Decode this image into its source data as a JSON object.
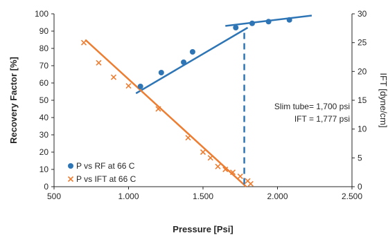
{
  "chart_data": {
    "type": "scatter",
    "xlabel": "Pressure [Psi]",
    "ylabel": "Recovery Factor [%]",
    "y2label": "IFT [dyne/cm]",
    "xlim": [
      500,
      2500
    ],
    "ylim": [
      0,
      100
    ],
    "y2lim": [
      0,
      30
    ],
    "x_ticks": [
      500,
      1000,
      1500,
      2000,
      2500
    ],
    "x_tick_labels": [
      "500",
      "1.000",
      "1.500",
      "2.000",
      "2.500"
    ],
    "y_ticks": [
      0,
      10,
      20,
      30,
      40,
      50,
      60,
      70,
      80,
      90,
      100
    ],
    "y2_ticks": [
      0,
      5,
      10,
      15,
      20,
      25,
      30
    ],
    "grid": false,
    "legend_position": "lower-left",
    "series": [
      {
        "name": "P vs RF at 66 C",
        "axis": "left",
        "color": "#2E75B6",
        "marker": "circle",
        "x": [
          1080,
          1220,
          1370,
          1430,
          1720,
          1830,
          1940,
          2080
        ],
        "y": [
          58,
          66,
          72,
          78,
          92,
          94.5,
          95.5,
          96.5
        ]
      },
      {
        "name": "P vs IFT at 66 C",
        "axis": "right",
        "color": "#ED7D31",
        "marker": "x",
        "x": [
          700,
          800,
          900,
          1000,
          1200,
          1400,
          1500,
          1550,
          1600,
          1650,
          1700,
          1750,
          1800,
          1820
        ],
        "y": [
          25,
          21.5,
          19,
          17.5,
          13.5,
          8.5,
          6,
          5,
          3.5,
          3,
          2.5,
          1.8,
          1,
          0.5
        ]
      }
    ],
    "trendlines": [
      {
        "axis": "left",
        "color": "#2E75B6",
        "x": [
          1050,
          1800
        ],
        "y": [
          54,
          92
        ]
      },
      {
        "axis": "left",
        "color": "#2E75B6",
        "x": [
          1650,
          2230
        ],
        "y": [
          93,
          99
        ]
      },
      {
        "axis": "right",
        "color": "#ED7D31",
        "x": [
          710,
          1790
        ],
        "y": [
          25.5,
          0
        ]
      }
    ],
    "vertical_marker": {
      "x": 1777,
      "color": "#2E75B6",
      "style": "dashed"
    },
    "annotations": [
      "Slim tube= 1,700 psi",
      "IFT = 1,777 psi"
    ]
  }
}
